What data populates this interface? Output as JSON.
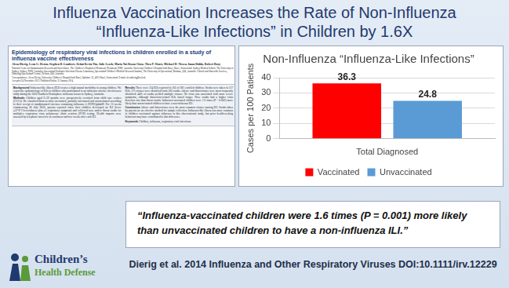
{
  "slide": {
    "title": [
      "Influenza Vaccination Increases the Rate of Non-Influenza",
      "“Influenza-Like Infections” in Children by 1.6X"
    ],
    "paper": {
      "title": "Epidemiology of respiratory viral infections in children enrolled in a study of influenza vaccine effectiveness",
      "authors": "Alexa Dierig, Leon G. Heron, Stephen B. Lambert, Jiehui Kevin Yin, Julie Leask, Maria Yui Kwan Chow, Theo P. Sloots, Michael D. Nissen, Iman Ridda, Robert Booy",
      "affiliations": "National Centre for Immunisation Research and Surveillance, The Children’s Hospital at Westmead, Westmead, NSW, Australia. University Children’s Hospital both Basel, Basel, Switzerland. Sydney Medical School, The University of Sydney, Sydney, NSW, Australia. Queensland Paediatric Infectious Disease Laboratory, Queensland Children’s Medical Research Institute, The University of Queensland, Brisbane, Qld, Australia. Clinical and Statewide Services, Pathology Queensland Central, Herston, Qld, Australia.",
      "correspondence": "Correspondence: Alexa Dierig, University Children’s Hospital both Basel, Spitalstr. 33, 4031 Basel, Switzerland. E-mail: alexadierig@web.de",
      "accepted": "Accepted 24 November 2013. Published Online 31 January 2014.",
      "abstract": [
        {
          "heading": "Background",
          "text": "Influenza-like illness (ILI) creates a high annual morbidity in young children. We report the epidemiology of ILIs in children who participated in an influenza vaccine effectiveness study during the 2010 Southern Hemisphere influenza season in Sydney, Australia."
        },
        {
          "heading": "Methods",
          "text": "Children aged 6–59 months were prospectively recruited from child care centres (CCCs). We classified them as fully vaccinated, partially vaccinated and unvaccinated according to their receipt of unadjuvanted vaccines containing influenza A (H1N1)pdm09. For 13 weeks commencing 30 July 2010, parents reported when their children developed an ILI (fever ≥37·8°C/feverishness plus ≥1 respiratory symptom) and collected nose and/or throat swabs for multiplex respiratory virus polymerase chain reaction (PCR) testing. Health impacts were assessed by telephone interview at enrolment and two weeks after each ILI."
        },
        {
          "heading": "Results",
          "text": "There were 124 ILIs reported in 105 of 381 enrolled children. Swabs were taken in 117 ILIs; 175 viruses were identified from 103 swabs. Adeno- and rhinoviruses were most frequently identified; 44% of swabs yielded multiple viruses. No virus was associated with more severe symptoms, although rhinovirus-related ILIs lasted longer. Nose swabs had a higher virus detection rate than throat swabs. Influenza-vaccinated children were 1·6 times (P = 0·001) more likely than unvaccinated children to have a non-influenza ILI."
        },
        {
          "heading": "Conclusion",
          "text": "Adeno- and rhinoviruses were the most common viruses causing ILI. Swabs taken by parents are an effective method for sample collection. Influenza-like illness was more common in children vaccinated against influenza in this observational study, but prior health-seeking behaviour may have contributed to this difference."
        },
        {
          "heading": "Keywords",
          "text": "Children, influenza, respiratory viral infections."
        }
      ]
    },
    "quote": "“Influenza-vaccinated children were 1.6 times (P = 0.001) more likely than unvaccinated children to have a non-influenza ILI.”",
    "citation": "Dierig et al. 2014 Influenza and Other Respiratory Viruses DOI:10.1111/irv.12229",
    "logo": [
      "Children’s",
      "Health Defense"
    ]
  },
  "chart_data": {
    "type": "bar",
    "title": "Non-Influenza “Influenza-Like Infections”",
    "y_label": "Cases per 100 Patients",
    "categories": [
      "Total Diagnosed"
    ],
    "series": [
      {
        "name": "Vaccinated",
        "color": "#ff0000",
        "values": [
          36.3
        ]
      },
      {
        "name": "Unvaccinated",
        "color": "#5b9bd5",
        "values": [
          24.8
        ]
      }
    ],
    "ylim": [
      0,
      40
    ],
    "yticks": [
      0,
      10,
      20,
      30,
      40
    ],
    "grid": true,
    "legend": "bottom",
    "data_labels": true
  }
}
